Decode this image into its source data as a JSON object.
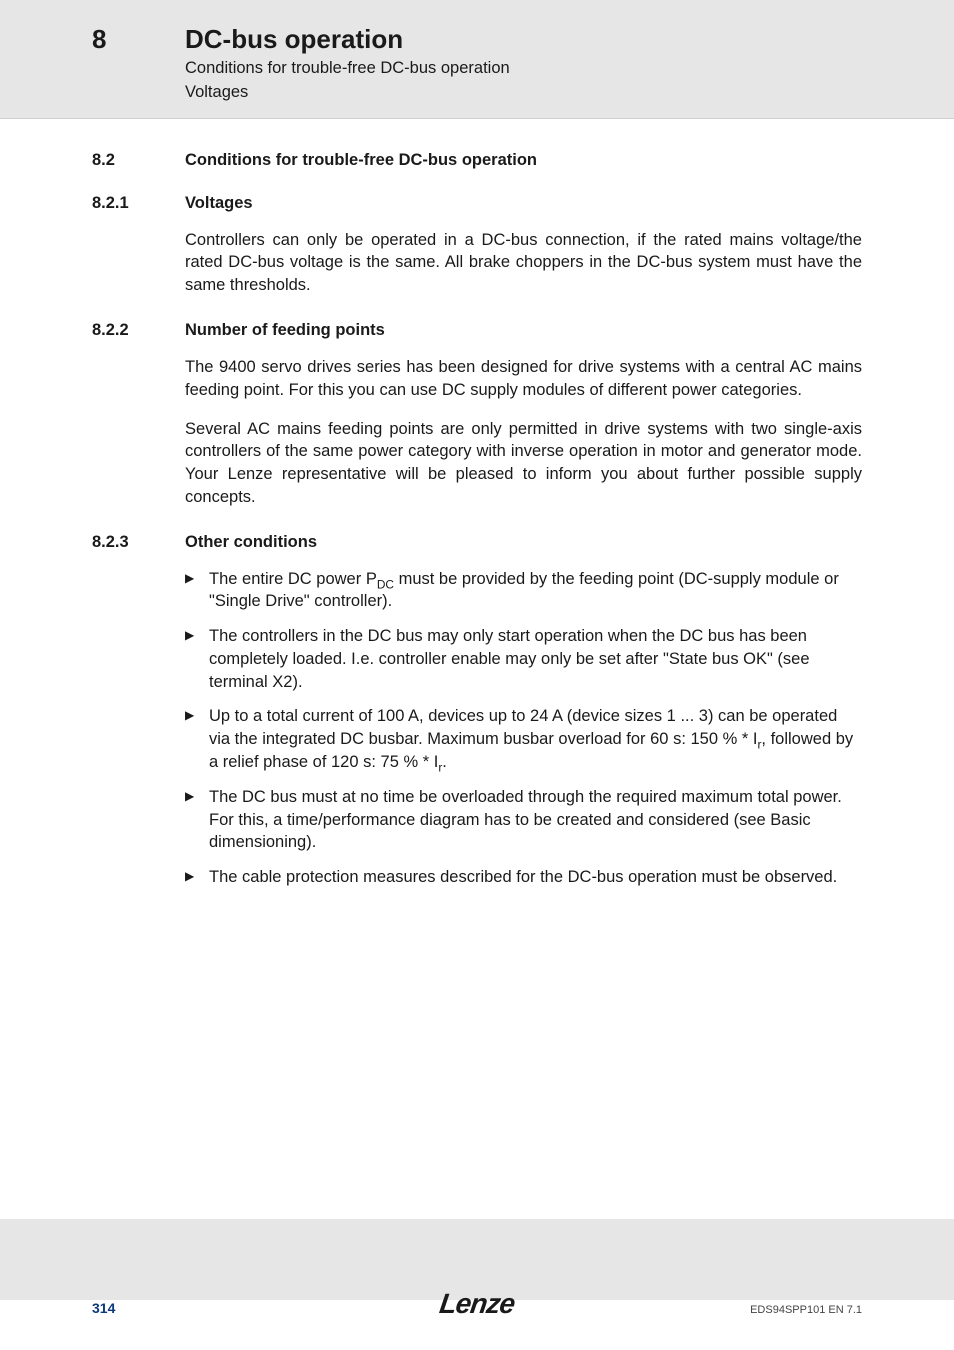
{
  "header": {
    "chapter_number": "8",
    "chapter_title": "DC-bus operation",
    "subtitle_line1": "Conditions for trouble-free DC-bus operation",
    "subtitle_line2": "Voltages"
  },
  "section_8_2": {
    "number": "8.2",
    "title": "Conditions for trouble-free DC-bus operation"
  },
  "section_8_2_1": {
    "number": "8.2.1",
    "title": "Voltages",
    "body": "Controllers can only be operated in a DC-bus connection, if the rated mains voltage/the rated DC-bus voltage is the same. All brake choppers in the DC-bus system must have the same thresholds."
  },
  "section_8_2_2": {
    "number": "8.2.2",
    "title": "Number of feeding points",
    "body_p1": "The 9400 servo drives series has been designed for drive systems with a central AC mains feeding point. For this you can use DC supply modules of different power categories.",
    "body_p2": "Several AC mains feeding points are only permitted in drive systems with two single-axis controllers of the same power category with inverse operation in motor and generator mode. Your Lenze representative will be pleased to inform you about further possible supply concepts."
  },
  "section_8_2_3": {
    "number": "8.2.3",
    "title": "Other conditions",
    "bullets": {
      "b1_pre": "The entire DC power P",
      "b1_sub": "DC",
      "b1_post": " must be provided by the feeding point (DC-supply module or \"Single Drive\" controller).",
      "b2": "The controllers in the DC bus may only start operation when the DC bus has been completely loaded. I.e. controller enable may only be set after \"State bus OK\" (see terminal X2).",
      "b3_pre": "Up to a total current of 100 A, devices up to 24 A (device sizes 1 ... 3) can be operated via the integrated DC busbar. Maximum busbar overload for 60 s: 150 % * I",
      "b3_sub1": "r",
      "b3_mid": ", followed by a relief phase of 120 s: 75 % * I",
      "b3_sub2": "r",
      "b3_post": ".",
      "b4": "The DC bus must at no time be overloaded through the required maximum total power. For this, a time/performance diagram has to be created and considered (see Basic dimensioning).",
      "b5": "The cable protection measures described for the DC-bus operation must be observed."
    }
  },
  "footer": {
    "page_number": "314",
    "logo_text": "Lenze",
    "doc_code": "EDS94SPP101  EN  7.1"
  },
  "colors": {
    "header_bg": "#e6e6e6",
    "content_bg": "#ffffff",
    "text": "#1a1a1a",
    "page_num": "#0a3a7a"
  },
  "typography": {
    "chapter_num_size": 26,
    "chapter_title_size": 26,
    "subtitle_size": 16.5,
    "section_heading_size": 16.5,
    "body_size": 16.5,
    "footer_page_size": 14,
    "footer_code_size": 11,
    "logo_size": 28
  }
}
